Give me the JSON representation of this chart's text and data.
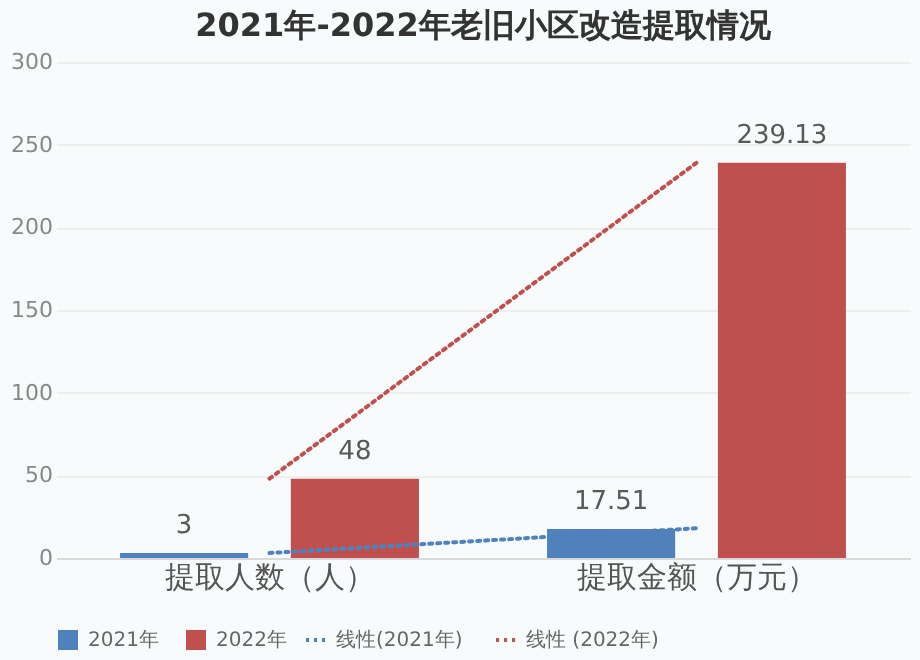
{
  "chart_data": {
    "type": "bar",
    "title": "2021年-2022年老旧小区改造提取情况",
    "categories": [
      "提取人数（人）",
      "提取金额（万元）"
    ],
    "series": [
      {
        "name": "2021年",
        "color": "#4f81bd",
        "values": [
          3,
          17.51
        ]
      },
      {
        "name": "2022年",
        "color": "#c0504d",
        "values": [
          48,
          239.13
        ]
      },
      {
        "name": "线性(2021年)",
        "type": "line",
        "color": "#4f81bd",
        "line_style": "dotted",
        "values": [
          3,
          18
        ],
        "value_labels": [
          null,
          null
        ]
      },
      {
        "name": "线性 (2022年)",
        "type": "line",
        "color": "#c0504d",
        "line_style": "dotted",
        "values": [
          48,
          239
        ],
        "value_labels": [
          null,
          null
        ]
      }
    ],
    "ylim": [
      0,
      300
    ],
    "yticks": [
      0,
      50,
      100,
      150,
      200,
      250,
      300
    ],
    "grid": "y",
    "legend": "bottom",
    "data_labels": true
  }
}
